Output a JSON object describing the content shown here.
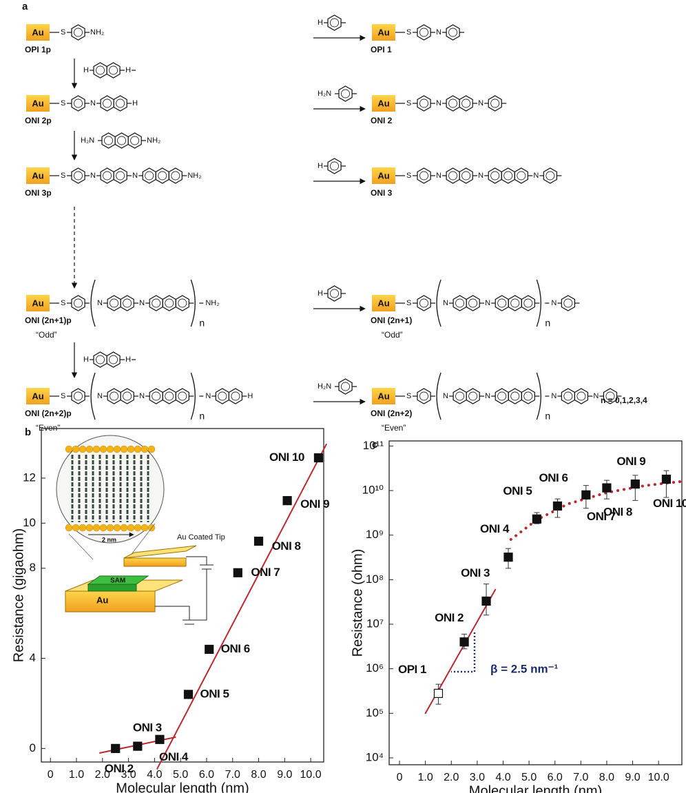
{
  "scheme": {
    "panel": "a",
    "au": "Au",
    "s": "S",
    "atoms": {
      "nh2": "NH₂",
      "h2n": "H₂N",
      "n": "N",
      "h": "H"
    },
    "repeat_n": "n",
    "repeat_range": "n = 0,1,2,3,4",
    "left": [
      {
        "label": "OPI 1p"
      },
      {
        "label": "ONI 2p"
      },
      {
        "label": "ONI 3p"
      },
      {
        "label": "ONI (2n+1)p",
        "note": "“Odd”"
      },
      {
        "label": "ONI (2n+2)p",
        "note": "“Even”"
      }
    ],
    "right": [
      {
        "label": "OPI 1"
      },
      {
        "label": "ONI 2"
      },
      {
        "label": "ONI 3"
      },
      {
        "label": "ONI (2n+1)",
        "note": "“Odd”"
      },
      {
        "label": "ONI (2n+2)",
        "note": "“Even”"
      }
    ]
  },
  "chart_data": [
    {
      "type": "scatter",
      "panel": "b",
      "xlabel": "Molecular length (nm)",
      "ylabel": "Resistance (gigaohm)",
      "xlim": [
        -0.35,
        10.5
      ],
      "xticks": [
        0,
        {
          "value": 1,
          "label": "1.0"
        },
        {
          "value": 2,
          "label": "2.0"
        },
        {
          "value": 3,
          "label": "3.0"
        },
        {
          "value": 4,
          "label": "4.0"
        },
        {
          "value": 5,
          "label": "5.0"
        },
        {
          "value": 6,
          "label": "6.0"
        },
        {
          "value": 7,
          "label": "7.0"
        },
        {
          "value": 8,
          "label": "8.0"
        },
        {
          "value": 9,
          "label": "9.0"
        },
        {
          "value": 10,
          "label": "10.0"
        }
      ],
      "ylim": [
        -0.6,
        14.2
      ],
      "yticks": [
        0,
        4,
        8,
        10,
        12
      ],
      "log_y": false,
      "x": [
        2.5,
        3.35,
        4.2,
        5.3,
        6.1,
        7.2,
        8.0,
        9.1,
        10.3
      ],
      "values": [
        0.0,
        0.1,
        0.4,
        2.4,
        4.4,
        7.8,
        9.2,
        11.0,
        12.9
      ],
      "point_labels": [
        "ONI 2",
        "ONI 3",
        "ONI 4",
        "ONI 5",
        "ONI 6",
        "ONI 7",
        "ONI 8",
        "ONI 9",
        "ONI 10"
      ],
      "marker_colors": [
        "#111111",
        "#111111",
        "#111111",
        "#111111",
        "#111111",
        "#111111",
        "#111111",
        "#111111",
        "#111111"
      ],
      "fit_color": "#c0272d",
      "fits": [
        {
          "x": [
            1.9,
            4.8
          ],
          "y": [
            -0.2,
            0.5
          ],
          "style": "solid"
        },
        {
          "x": [
            4.1,
            10.6
          ],
          "y": [
            -0.9,
            13.5
          ],
          "style": "solid"
        }
      ],
      "inset": {
        "tip": "Au Coated Tip",
        "sam": "SAM",
        "substrate": "Au",
        "scale": "2 nm"
      }
    },
    {
      "type": "scatter",
      "panel": "c",
      "xlabel": "Molecular length (nm)",
      "ylabel": "Resistance (ohm)",
      "xlim": [
        -0.4,
        10.9
      ],
      "xticks": [
        0,
        {
          "value": 1,
          "label": "1.0"
        },
        {
          "value": 2,
          "label": "2.0"
        },
        {
          "value": 3,
          "label": "3.0"
        },
        {
          "value": 4,
          "label": "4.0"
        },
        {
          "value": 5,
          "label": "5.0"
        },
        {
          "value": 6,
          "label": "6.0"
        },
        {
          "value": 7,
          "label": "7.0"
        },
        {
          "value": 8,
          "label": "8.0"
        },
        {
          "value": 9,
          "label": "9.0"
        },
        {
          "value": 10,
          "label": "10.0"
        }
      ],
      "ylim": [
        7000,
        130000000000
      ],
      "log_y": true,
      "yticks": [
        {
          "value": 10000,
          "label": "10⁴"
        },
        {
          "value": 100000,
          "label": "10⁵"
        },
        {
          "value": 1000000,
          "label": "10⁶"
        },
        {
          "value": 10000000,
          "label": "10⁷"
        },
        {
          "value": 100000000,
          "label": "10⁸"
        },
        {
          "value": 1000000000,
          "label": "10⁹"
        },
        {
          "value": 10000000000,
          "label": "10¹⁰"
        },
        {
          "value": 100000000000,
          "label": "10¹¹"
        }
      ],
      "x": [
        1.5,
        2.5,
        3.35,
        4.2,
        5.3,
        6.1,
        7.2,
        8.0,
        9.1,
        10.3
      ],
      "values": [
        280000,
        4000000,
        33000000,
        320000000,
        2300000000,
        4500000000,
        8000000000,
        11500000000,
        14000000000,
        18000000000
      ],
      "err_low": [
        160000,
        2800000,
        16000000,
        180000000,
        1800000000,
        2500000000,
        4000000000,
        6500000000,
        6000000000,
        7000000000
      ],
      "err_high": [
        450000,
        6000000,
        80000000,
        500000000,
        3200000000,
        6500000000,
        13000000000,
        17000000000,
        22000000000,
        28000000000
      ],
      "point_labels": [
        "OPI 1",
        "ONI 2",
        "ONI 3",
        "ONI 4",
        "ONI 5",
        "ONI 6",
        "ONI 7",
        "ONI 8",
        "ONI 9",
        "ONI 10"
      ],
      "marker_colors": [
        "#ffffff",
        "#111111",
        "#111111",
        "#111111",
        "#111111",
        "#111111",
        "#111111",
        "#111111",
        "#111111",
        "#111111"
      ],
      "fit_color": "#c0272d",
      "fits": [
        {
          "x": [
            1.0,
            3.7
          ],
          "y": [
            100000,
            60000000
          ],
          "style": "solid"
        },
        {
          "x": [
            4.3,
            5.3,
            6.5,
            8.0,
            9.5,
            10.9
          ],
          "y": [
            800000000,
            2200000000,
            5000000000,
            9000000000,
            13000000000,
            16000000000
          ],
          "style": "dotted"
        }
      ],
      "annotation": "β = 2.5 nm⁻¹"
    }
  ]
}
